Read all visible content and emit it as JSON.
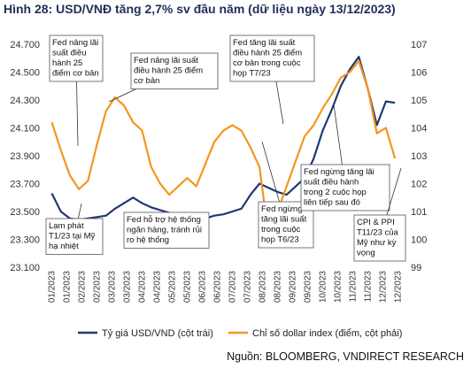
{
  "title": "Hình 28: USD/VNĐ tăng 2,7% sv đầu năm (dữ liệu ngày 13/12/2023)",
  "source": "Nguồn:  BLOOMBERG, VNDIRECT RESEARCH",
  "colors": {
    "usd_vnd": "#1f3a73",
    "dxy": "#f7951e",
    "title": "#1f2f57"
  },
  "chart_data": {
    "type": "line",
    "x_tick_labels": [
      "01/2023",
      "01/2023",
      "02/2023",
      "02/2023",
      "03/2023",
      "03/2023",
      "04/2023",
      "04/2023",
      "05/2023",
      "05/2023",
      "06/2023",
      "06/2023",
      "07/2023",
      "07/2023",
      "08/2023",
      "08/2023",
      "09/2023",
      "09/2023",
      "10/2023",
      "10/2023",
      "11/2023",
      "11/2023",
      "12/2023",
      "12/2023"
    ],
    "y_left": {
      "ticks": [
        "23.100",
        "23.300",
        "23.500",
        "23.700",
        "23.900",
        "24.100",
        "24.300",
        "24.500",
        "24.700"
      ],
      "range": [
        23100,
        24700
      ]
    },
    "y_right": {
      "ticks": [
        "99",
        "100",
        "101",
        "102",
        "103",
        "104",
        "105",
        "106",
        "107"
      ],
      "range": [
        99,
        107
      ]
    },
    "series": [
      {
        "name": "Tỷ giá USD/VND (cột trái)",
        "axis": "left",
        "color": "#1f3a73",
        "x": [
          0,
          0.3,
          0.6,
          0.9,
          1.2,
          1.5,
          1.8,
          2.1,
          2.4,
          2.7,
          3.0,
          3.3,
          3.6,
          3.9,
          4.2,
          4.5,
          4.8,
          5.1,
          5.4,
          5.7,
          6.0,
          6.3,
          6.6,
          6.9,
          7.2,
          7.5,
          7.8,
          8.1,
          8.4,
          8.7,
          9.0,
          9.3,
          9.6,
          9.9,
          10.2,
          10.5,
          10.8,
          11.1,
          11.4
        ],
        "values": [
          23630,
          23500,
          23450,
          23440,
          23450,
          23460,
          23470,
          23520,
          23560,
          23600,
          23560,
          23530,
          23510,
          23490,
          23480,
          23470,
          23460,
          23450,
          23470,
          23480,
          23500,
          23520,
          23620,
          23700,
          23670,
          23640,
          23620,
          23680,
          23740,
          23880,
          24080,
          24230,
          24400,
          24520,
          24610,
          24380,
          24120,
          24290,
          24280
        ]
      },
      {
        "name": "Chỉ số dollar index (điểm, cột phải)",
        "axis": "right",
        "color": "#f7951e",
        "x": [
          0,
          0.3,
          0.6,
          0.9,
          1.2,
          1.5,
          1.8,
          2.1,
          2.4,
          2.7,
          3.0,
          3.3,
          3.6,
          3.9,
          4.2,
          4.5,
          4.8,
          5.1,
          5.4,
          5.7,
          6.0,
          6.3,
          6.6,
          6.9,
          7.2,
          7.5,
          7.8,
          8.1,
          8.4,
          8.7,
          9.0,
          9.3,
          9.6,
          9.9,
          10.2,
          10.5,
          10.8,
          11.1,
          11.4
        ],
        "values": [
          104.2,
          103.2,
          102.3,
          101.8,
          102.1,
          103.4,
          104.6,
          105.1,
          104.8,
          104.2,
          103.9,
          102.6,
          102.0,
          101.6,
          101.9,
          102.2,
          101.9,
          102.7,
          103.5,
          103.9,
          104.1,
          103.9,
          103.3,
          102.6,
          100.1,
          101.0,
          101.9,
          102.8,
          103.7,
          104.1,
          104.7,
          105.2,
          105.8,
          106.0,
          106.4,
          105.4,
          103.8,
          104.0,
          102.9
        ]
      }
    ],
    "legend": [
      "Tỷ giá USD/VND (cột trái)",
      "Chỉ số dollar index (điểm, cột phải)"
    ],
    "legend_position": "bottom",
    "annotations": [
      "Lạm phát T1/23 tại Mỹ hạ nhiệt",
      "Fed nâng lãi suất điều hành 25 điểm cơ bản",
      "Fed nâng lãi suất điều hành 25 điểm cơ bản",
      "Fed hỗ trợ hệ thống ngân hàng, tránh rủi ro hệ thống",
      "Fed tăng lãi suất điều hành 25 điểm cơ bản trong cuộc họp T7/23",
      "Fed ngừng tăng lãi suất trong cuộc họp T6/23",
      "Fed ngừng tăng lãi suất điều hành trong 2 cuộc họp liên tiếp sau đó",
      "CPI & PPI T11/23 của Mỹ như kỳ vọng"
    ]
  }
}
